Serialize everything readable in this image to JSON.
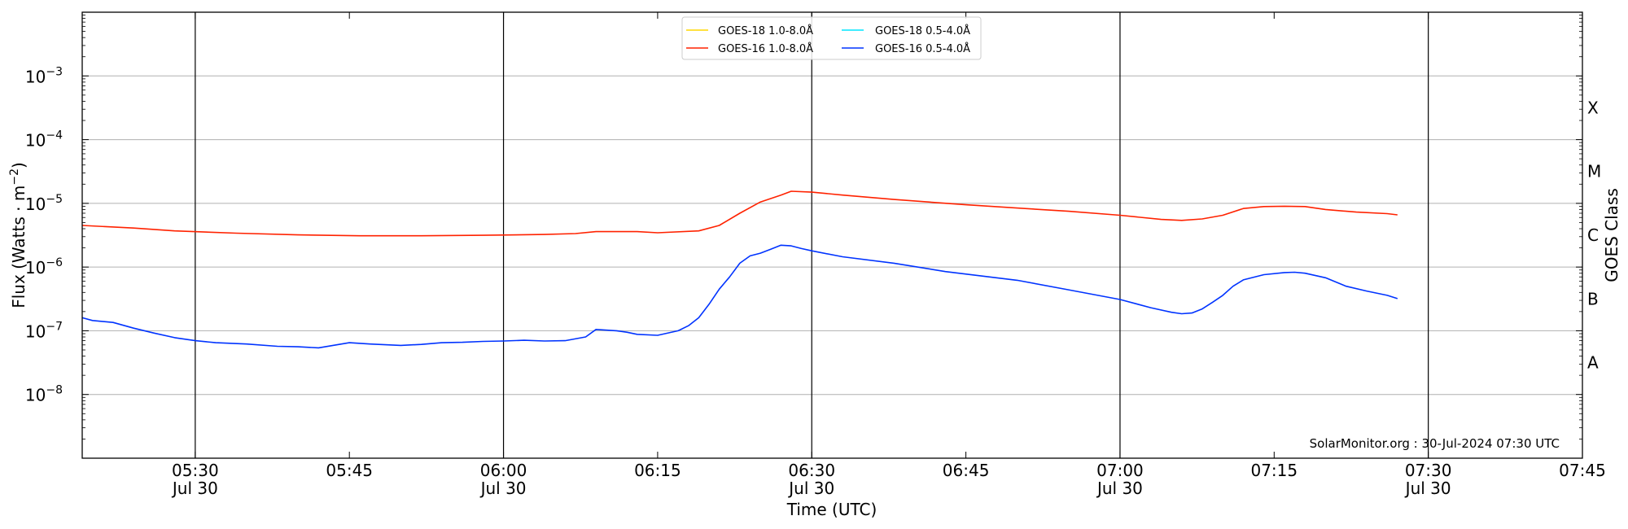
{
  "chart_data": {
    "type": "line",
    "yscale": "log",
    "ylim": [
      1e-09,
      0.01
    ],
    "xlim": [
      "05:19",
      "07:45"
    ],
    "xlabel": "Time (UTC)",
    "ylabel_base": "Flux (Watts · m",
    "ylabel_sup": "−2",
    "ylabel_end": ")",
    "right_label": "GOES Class",
    "credit": "SolarMonitor.org : 30-Jul-2024 07:30 UTC",
    "grid": true,
    "legend_position": "top-center",
    "y_ticks": [
      {
        "value": 1e-08,
        "label": "10",
        "exp": "−8"
      },
      {
        "value": 1e-07,
        "label": "10",
        "exp": "−7"
      },
      {
        "value": 1e-06,
        "label": "10",
        "exp": "−6"
      },
      {
        "value": 1e-05,
        "label": "10",
        "exp": "−5"
      },
      {
        "value": 0.0001,
        "label": "10",
        "exp": "−4"
      },
      {
        "value": 0.001,
        "label": "10",
        "exp": "−3"
      }
    ],
    "class_labels": [
      {
        "label": "A",
        "value": 3.16e-08
      },
      {
        "label": "B",
        "value": 3.16e-07
      },
      {
        "label": "C",
        "value": 3.16e-06
      },
      {
        "label": "M",
        "value": 3.16e-05
      },
      {
        "label": "X",
        "value": 0.000316
      }
    ],
    "x_ticks": [
      {
        "time": "05:30",
        "line1": "05:30",
        "line2": "Jul 30",
        "vline": true
      },
      {
        "time": "05:45",
        "line1": "05:45",
        "line2": "",
        "vline": false
      },
      {
        "time": "06:00",
        "line1": "06:00",
        "line2": "Jul 30",
        "vline": true
      },
      {
        "time": "06:15",
        "line1": "06:15",
        "line2": "",
        "vline": false
      },
      {
        "time": "06:30",
        "line1": "06:30",
        "line2": "Jul 30",
        "vline": true
      },
      {
        "time": "06:45",
        "line1": "06:45",
        "line2": "",
        "vline": false
      },
      {
        "time": "07:00",
        "line1": "07:00",
        "line2": "Jul 30",
        "vline": true
      },
      {
        "time": "07:15",
        "line1": "07:15",
        "line2": "",
        "vline": false
      },
      {
        "time": "07:30",
        "line1": "07:30",
        "line2": "Jul 30",
        "vline": true
      },
      {
        "time": "07:45",
        "line1": "07:45",
        "line2": "",
        "vline": false
      }
    ],
    "series": [
      {
        "name": "GOES-18 1.0-8.0Å",
        "color": "#ffd700",
        "x": [],
        "y": []
      },
      {
        "name": "GOES-16 1.0-8.0Å",
        "color": "#ff2200",
        "x": [
          "05:19",
          "05:24",
          "05:28",
          "05:34",
          "05:40",
          "05:46",
          "05:52",
          "05:58",
          "06:04",
          "06:07",
          "06:09",
          "06:13",
          "06:15",
          "06:19",
          "06:21",
          "06:23",
          "06:25",
          "06:27",
          "06:28",
          "06:30",
          "06:33",
          "06:38",
          "06:45",
          "06:55",
          "07:00",
          "07:04",
          "07:06",
          "07:08",
          "07:10",
          "07:12",
          "07:14",
          "07:16",
          "07:18",
          "07:20",
          "07:23",
          "07:26",
          "07:27"
        ],
        "y": [
          4.5e-06,
          4.1e-06,
          3.7e-06,
          3.4e-06,
          3.2e-06,
          3.1e-06,
          3.1e-06,
          3.15e-06,
          3.25e-06,
          3.35e-06,
          3.6e-06,
          3.6e-06,
          3.45e-06,
          3.7e-06,
          4.5e-06,
          7e-06,
          1.05e-05,
          1.35e-05,
          1.55e-05,
          1.5e-05,
          1.35e-05,
          1.15e-05,
          9.5e-06,
          7.5e-06,
          6.5e-06,
          5.6e-06,
          5.4e-06,
          5.7e-06,
          6.5e-06,
          8.3e-06,
          8.9e-06,
          9e-06,
          8.9e-06,
          8e-06,
          7.3e-06,
          6.9e-06,
          6.6e-06
        ]
      },
      {
        "name": "GOES-18 0.5-4.0Å",
        "color": "#00e5ff",
        "x": [],
        "y": []
      },
      {
        "name": "GOES-16 0.5-4.0Å",
        "color": "#0033ff",
        "x": [
          "05:19",
          "05:20",
          "05:22",
          "05:24",
          "05:26",
          "05:28",
          "05:30",
          "05:32",
          "05:35",
          "05:38",
          "05:40",
          "05:42",
          "05:45",
          "05:47",
          "05:50",
          "05:52",
          "05:54",
          "05:56",
          "05:58",
          "06:00",
          "06:02",
          "06:04",
          "06:06",
          "06:08",
          "06:09",
          "06:11",
          "06:12",
          "06:13",
          "06:15",
          "06:17",
          "06:18",
          "06:19",
          "06:20",
          "06:21",
          "06:22",
          "06:23",
          "06:24",
          "06:25",
          "06:26",
          "06:27",
          "06:28",
          "06:29",
          "06:30",
          "06:33",
          "06:38",
          "06:43",
          "06:50",
          "06:55",
          "07:00",
          "07:03",
          "07:05",
          "07:06",
          "07:07",
          "07:08",
          "07:09",
          "07:10",
          "07:11",
          "07:12",
          "07:14",
          "07:16",
          "07:17",
          "07:18",
          "07:20",
          "07:22",
          "07:24",
          "07:26",
          "07:27"
        ],
        "y": [
          1.6e-07,
          1.45e-07,
          1.35e-07,
          1.1e-07,
          9.2e-08,
          7.8e-08,
          7e-08,
          6.5e-08,
          6.2e-08,
          5.7e-08,
          5.6e-08,
          5.4e-08,
          6.5e-08,
          6.2e-08,
          5.9e-08,
          6.1e-08,
          6.5e-08,
          6.6e-08,
          6.8e-08,
          6.9e-08,
          7.1e-08,
          6.9e-08,
          7e-08,
          8e-08,
          1.05e-07,
          1e-07,
          9.5e-08,
          8.8e-08,
          8.5e-08,
          1e-07,
          1.2e-07,
          1.6e-07,
          2.6e-07,
          4.5e-07,
          7e-07,
          1.15e-06,
          1.5e-06,
          1.65e-06,
          1.9e-06,
          2.2e-06,
          2.15e-06,
          1.95e-06,
          1.8e-06,
          1.45e-06,
          1.15e-06,
          8.5e-07,
          6.2e-07,
          4.4e-07,
          3.1e-07,
          2.3e-07,
          1.95e-07,
          1.85e-07,
          1.9e-07,
          2.2e-07,
          2.8e-07,
          3.6e-07,
          5e-07,
          6.3e-07,
          7.6e-07,
          8.2e-07,
          8.3e-07,
          8e-07,
          6.8e-07,
          5e-07,
          4.2e-07,
          3.6e-07,
          3.2e-07
        ]
      }
    ]
  }
}
